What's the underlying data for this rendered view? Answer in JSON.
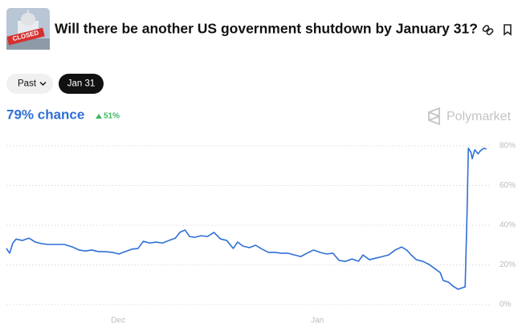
{
  "header": {
    "title": "Will there be another US government shutdown by January 31?",
    "thumbnail_label": "CLOSED",
    "chance": "79% chance",
    "change": "51%"
  },
  "filters": [
    "Past",
    "Jan 31"
  ],
  "brand": "Polymarket",
  "chart_data": {
    "type": "line",
    "color": "#2f6fd6",
    "x": [
      -17.4,
      -16.9,
      -16.4,
      -15.9,
      -14.9,
      -13.9,
      -12.9,
      -11.9,
      -10.9,
      -9.6,
      -8.4,
      -7.1,
      -6.1,
      -5.1,
      -4.1,
      -3.1,
      -2.1,
      -0.9,
      0.1,
      1.1,
      2.1,
      3.1,
      3.9,
      4.9,
      5.9,
      6.9,
      7.9,
      8.9,
      9.6,
      10.4,
      11.1,
      11.9,
      12.9,
      13.9,
      14.9,
      15.9,
      16.9,
      17.9,
      18.6,
      19.4,
      20.4,
      21.4,
      22.4,
      23.4,
      24.4,
      25.4,
      26.4,
      27.4,
      28.4,
      29.4,
      30.4,
      31.4,
      32.4,
      33.4,
      34.4,
      35.4,
      36.4,
      37.4,
      38.1,
      39.1,
      40.1,
      41.1,
      42.1,
      43.1,
      44.1,
      44.9,
      45.6,
      46.4,
      47.4,
      48.4,
      49.4,
      50.1,
      50.6,
      51.4,
      52.1,
      52.9,
      53.6,
      54,
      54.3,
      54.5,
      54.9,
      55.1,
      55.5,
      56,
      56.4,
      56.9,
      57.3
    ],
    "values": [
      28.3,
      25.9,
      31,
      33,
      32.3,
      33.5,
      31.5,
      30.7,
      30.3,
      30.3,
      30.3,
      29,
      27.5,
      27,
      27.5,
      26.7,
      26.7,
      26.3,
      25.5,
      26.7,
      27.9,
      28.3,
      31.9,
      31,
      31.5,
      31,
      32.3,
      33.5,
      36.4,
      37.6,
      34.3,
      33.9,
      34.7,
      34.3,
      36.4,
      33.1,
      32.3,
      28.3,
      31.5,
      29.5,
      28.7,
      29.9,
      27.9,
      26.3,
      26.3,
      25.9,
      25.9,
      25,
      24.2,
      25.9,
      27.5,
      26.3,
      25.5,
      25.9,
      22.2,
      21.8,
      23,
      21.8,
      25,
      22.6,
      23.4,
      24.2,
      25,
      27.5,
      29,
      27.5,
      25,
      22.6,
      21.8,
      20.2,
      17.8,
      16.2,
      12.1,
      11.3,
      9.3,
      7.7,
      8.5,
      8.9,
      46.5,
      78.8,
      76.8,
      73.5,
      78,
      76,
      77.6,
      78.8,
      78.4
    ],
    "xlim": [
      -17.4,
      58.1
    ],
    "xticks": [
      {
        "value": 0,
        "label": "Dec"
      },
      {
        "value": 31,
        "label": "Jan"
      }
    ],
    "ylim": [
      0,
      80
    ],
    "yticks": [
      {
        "value": 0,
        "label": "0%"
      },
      {
        "value": 20,
        "label": "20%"
      },
      {
        "value": 40,
        "label": "40%"
      },
      {
        "value": 60,
        "label": "60%"
      },
      {
        "value": 80,
        "label": "80%"
      }
    ],
    "grid": true
  }
}
